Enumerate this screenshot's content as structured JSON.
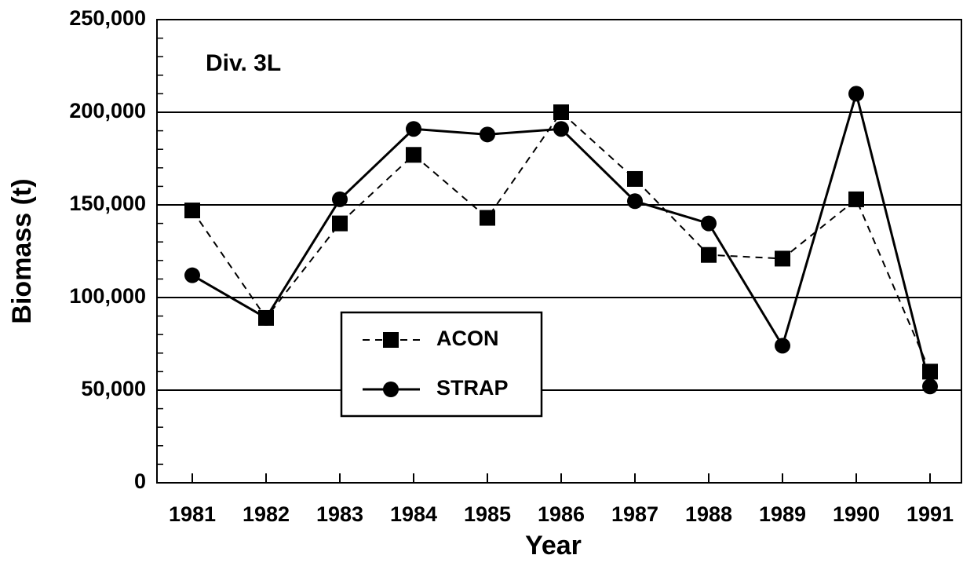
{
  "chart_data": {
    "type": "line",
    "annotation": "Div. 3L",
    "x_label": "Year",
    "y_label": "Biomass (t)",
    "categories": [
      "1981",
      "1982",
      "1983",
      "1984",
      "1985",
      "1986",
      "1987",
      "1988",
      "1989",
      "1990",
      "1991"
    ],
    "series": [
      {
        "name": "ACON",
        "color": "#000000",
        "marker": "square",
        "dash": true,
        "values": [
          147000,
          89000,
          140000,
          177000,
          143000,
          200000,
          164000,
          123000,
          121000,
          153000,
          60000
        ]
      },
      {
        "name": "STRAP",
        "color": "#000000",
        "marker": "circle",
        "dash": false,
        "values": [
          112000,
          89000,
          153000,
          191000,
          188000,
          191000,
          152000,
          140000,
          74000,
          210000,
          52000
        ]
      }
    ],
    "ylim": [
      0,
      250000
    ],
    "yticks": [
      0,
      {
        "value": 50000,
        "label": "50,000"
      },
      {
        "value": 100000,
        "label": "100,000"
      },
      {
        "value": 150000,
        "label": "150,000"
      },
      {
        "value": 200000,
        "label": "200,000"
      },
      {
        "value": 250000,
        "label": "250,000"
      }
    ],
    "grid": true
  }
}
